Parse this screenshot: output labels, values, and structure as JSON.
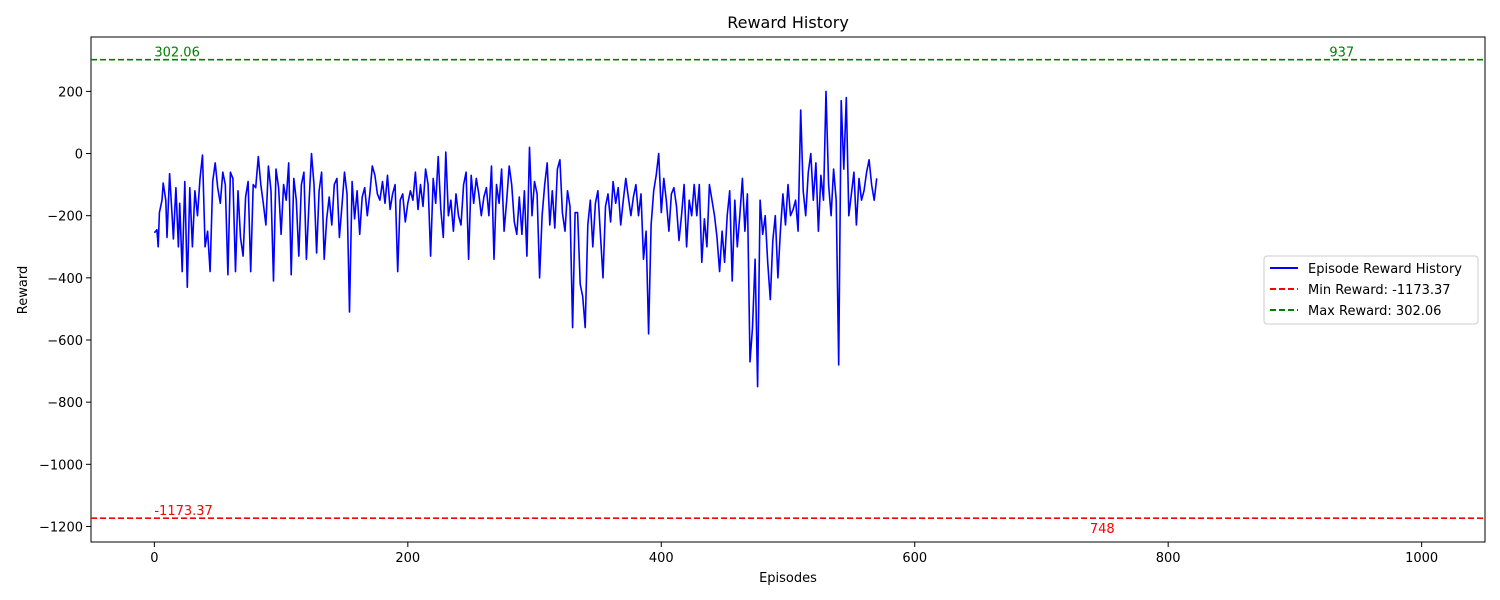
{
  "chart_data": {
    "type": "line",
    "title": "Reward History",
    "xlabel": "Episodes",
    "ylabel": "Reward",
    "xlim": [
      -50,
      1050
    ],
    "ylim": [
      -1250,
      375
    ],
    "xticks": [
      0,
      200,
      400,
      600,
      800,
      1000
    ],
    "xtick_labels": [
      "0",
      "200",
      "400",
      "600",
      "800",
      "1000"
    ],
    "yticks": [
      -1200,
      -1000,
      -800,
      -600,
      -400,
      -200,
      0,
      200
    ],
    "ytick_labels": [
      "−1200",
      "−1000",
      "−800",
      "−600",
      "−400",
      "−200",
      "0",
      "200"
    ],
    "grid": false,
    "legend_position": "center-right",
    "series": [
      {
        "name": "Episode Reward History",
        "color": "#0000ff",
        "style": "solid",
        "points": [
          [
            0,
            -255
          ],
          [
            2,
            -245
          ],
          [
            3,
            -300
          ],
          [
            4,
            -190
          ],
          [
            6,
            -150
          ],
          [
            7,
            -95
          ],
          [
            9,
            -150
          ],
          [
            10,
            -270
          ],
          [
            12,
            -65
          ],
          [
            14,
            -200
          ],
          [
            15,
            -275
          ],
          [
            17,
            -110
          ],
          [
            19,
            -300
          ],
          [
            20,
            -160
          ],
          [
            22,
            -380
          ],
          [
            24,
            -90
          ],
          [
            26,
            -430
          ],
          [
            28,
            -110
          ],
          [
            30,
            -300
          ],
          [
            32,
            -120
          ],
          [
            34,
            -200
          ],
          [
            36,
            -80
          ],
          [
            38,
            -5
          ],
          [
            40,
            -300
          ],
          [
            42,
            -250
          ],
          [
            44,
            -380
          ],
          [
            46,
            -90
          ],
          [
            48,
            -30
          ],
          [
            50,
            -110
          ],
          [
            52,
            -160
          ],
          [
            54,
            -60
          ],
          [
            56,
            -100
          ],
          [
            58,
            -390
          ],
          [
            60,
            -60
          ],
          [
            62,
            -80
          ],
          [
            64,
            -380
          ],
          [
            66,
            -120
          ],
          [
            68,
            -270
          ],
          [
            70,
            -330
          ],
          [
            72,
            -140
          ],
          [
            74,
            -90
          ],
          [
            76,
            -380
          ],
          [
            78,
            -100
          ],
          [
            80,
            -110
          ],
          [
            82,
            -10
          ],
          [
            84,
            -100
          ],
          [
            86,
            -160
          ],
          [
            88,
            -230
          ],
          [
            90,
            -40
          ],
          [
            92,
            -120
          ],
          [
            94,
            -410
          ],
          [
            96,
            -50
          ],
          [
            98,
            -110
          ],
          [
            100,
            -260
          ],
          [
            102,
            -100
          ],
          [
            104,
            -150
          ],
          [
            106,
            -30
          ],
          [
            108,
            -390
          ],
          [
            110,
            -80
          ],
          [
            112,
            -150
          ],
          [
            114,
            -330
          ],
          [
            116,
            -100
          ],
          [
            118,
            -60
          ],
          [
            120,
            -340
          ],
          [
            122,
            -160
          ],
          [
            124,
            0
          ],
          [
            126,
            -100
          ],
          [
            128,
            -320
          ],
          [
            130,
            -120
          ],
          [
            132,
            -60
          ],
          [
            134,
            -340
          ],
          [
            136,
            -210
          ],
          [
            138,
            -140
          ],
          [
            140,
            -230
          ],
          [
            142,
            -100
          ],
          [
            144,
            -80
          ],
          [
            146,
            -270
          ],
          [
            148,
            -170
          ],
          [
            150,
            -60
          ],
          [
            152,
            -130
          ],
          [
            154,
            -510
          ],
          [
            156,
            -90
          ],
          [
            158,
            -210
          ],
          [
            160,
            -120
          ],
          [
            162,
            -260
          ],
          [
            164,
            -140
          ],
          [
            166,
            -110
          ],
          [
            168,
            -200
          ],
          [
            170,
            -130
          ],
          [
            172,
            -40
          ],
          [
            174,
            -70
          ],
          [
            176,
            -130
          ],
          [
            178,
            -150
          ],
          [
            180,
            -90
          ],
          [
            182,
            -160
          ],
          [
            184,
            -70
          ],
          [
            186,
            -180
          ],
          [
            188,
            -130
          ],
          [
            190,
            -100
          ],
          [
            192,
            -380
          ],
          [
            194,
            -150
          ],
          [
            196,
            -130
          ],
          [
            198,
            -220
          ],
          [
            200,
            -160
          ],
          [
            202,
            -120
          ],
          [
            204,
            -150
          ],
          [
            206,
            -60
          ],
          [
            208,
            -180
          ],
          [
            210,
            -100
          ],
          [
            212,
            -170
          ],
          [
            214,
            -50
          ],
          [
            216,
            -100
          ],
          [
            218,
            -330
          ],
          [
            220,
            -80
          ],
          [
            222,
            -160
          ],
          [
            224,
            -10
          ],
          [
            226,
            -180
          ],
          [
            228,
            -270
          ],
          [
            230,
            5
          ],
          [
            232,
            -200
          ],
          [
            234,
            -150
          ],
          [
            236,
            -250
          ],
          [
            238,
            -130
          ],
          [
            240,
            -200
          ],
          [
            242,
            -230
          ],
          [
            244,
            -100
          ],
          [
            246,
            -60
          ],
          [
            248,
            -340
          ],
          [
            250,
            -70
          ],
          [
            252,
            -160
          ],
          [
            254,
            -80
          ],
          [
            256,
            -130
          ],
          [
            258,
            -200
          ],
          [
            260,
            -140
          ],
          [
            262,
            -110
          ],
          [
            264,
            -200
          ],
          [
            266,
            -40
          ],
          [
            268,
            -340
          ],
          [
            270,
            -100
          ],
          [
            272,
            -160
          ],
          [
            274,
            -50
          ],
          [
            276,
            -250
          ],
          [
            278,
            -150
          ],
          [
            280,
            -40
          ],
          [
            282,
            -100
          ],
          [
            284,
            -220
          ],
          [
            286,
            -260
          ],
          [
            288,
            -140
          ],
          [
            290,
            -260
          ],
          [
            292,
            -120
          ],
          [
            294,
            -330
          ],
          [
            296,
            20
          ],
          [
            298,
            -200
          ],
          [
            300,
            -90
          ],
          [
            302,
            -130
          ],
          [
            304,
            -400
          ],
          [
            306,
            -200
          ],
          [
            308,
            -100
          ],
          [
            310,
            -30
          ],
          [
            312,
            -230
          ],
          [
            314,
            -120
          ],
          [
            316,
            -240
          ],
          [
            318,
            -50
          ],
          [
            320,
            -20
          ],
          [
            322,
            -190
          ],
          [
            324,
            -250
          ],
          [
            326,
            -120
          ],
          [
            328,
            -170
          ],
          [
            330,
            -560
          ],
          [
            332,
            -190
          ],
          [
            334,
            -190
          ],
          [
            336,
            -420
          ],
          [
            338,
            -460
          ],
          [
            340,
            -560
          ],
          [
            342,
            -230
          ],
          [
            344,
            -150
          ],
          [
            346,
            -300
          ],
          [
            348,
            -160
          ],
          [
            350,
            -120
          ],
          [
            352,
            -260
          ],
          [
            354,
            -400
          ],
          [
            356,
            -170
          ],
          [
            358,
            -130
          ],
          [
            360,
            -220
          ],
          [
            362,
            -90
          ],
          [
            364,
            -160
          ],
          [
            366,
            -110
          ],
          [
            368,
            -230
          ],
          [
            370,
            -150
          ],
          [
            372,
            -80
          ],
          [
            374,
            -140
          ],
          [
            376,
            -200
          ],
          [
            378,
            -140
          ],
          [
            380,
            -100
          ],
          [
            382,
            -200
          ],
          [
            384,
            -130
          ],
          [
            386,
            -340
          ],
          [
            388,
            -250
          ],
          [
            390,
            -580
          ],
          [
            392,
            -230
          ],
          [
            394,
            -120
          ],
          [
            396,
            -70
          ],
          [
            398,
            0
          ],
          [
            400,
            -190
          ],
          [
            402,
            -80
          ],
          [
            404,
            -150
          ],
          [
            406,
            -250
          ],
          [
            408,
            -130
          ],
          [
            410,
            -110
          ],
          [
            412,
            -170
          ],
          [
            414,
            -280
          ],
          [
            416,
            -200
          ],
          [
            418,
            -100
          ],
          [
            420,
            -300
          ],
          [
            422,
            -150
          ],
          [
            424,
            -200
          ],
          [
            426,
            -100
          ],
          [
            428,
            -200
          ],
          [
            430,
            -100
          ],
          [
            432,
            -350
          ],
          [
            434,
            -210
          ],
          [
            436,
            -300
          ],
          [
            438,
            -100
          ],
          [
            440,
            -150
          ],
          [
            442,
            -200
          ],
          [
            444,
            -270
          ],
          [
            446,
            -380
          ],
          [
            448,
            -250
          ],
          [
            450,
            -350
          ],
          [
            452,
            -200
          ],
          [
            454,
            -120
          ],
          [
            456,
            -410
          ],
          [
            458,
            -150
          ],
          [
            460,
            -300
          ],
          [
            462,
            -200
          ],
          [
            464,
            -80
          ],
          [
            466,
            -250
          ],
          [
            468,
            -130
          ],
          [
            470,
            -670
          ],
          [
            472,
            -560
          ],
          [
            474,
            -340
          ],
          [
            476,
            -750
          ],
          [
            478,
            -150
          ],
          [
            480,
            -260
          ],
          [
            482,
            -200
          ],
          [
            484,
            -350
          ],
          [
            486,
            -470
          ],
          [
            488,
            -280
          ],
          [
            490,
            -200
          ],
          [
            492,
            -400
          ],
          [
            494,
            -250
          ],
          [
            496,
            -130
          ],
          [
            498,
            -230
          ],
          [
            500,
            -100
          ],
          [
            502,
            -200
          ],
          [
            504,
            -180
          ],
          [
            506,
            -150
          ],
          [
            508,
            -250
          ],
          [
            510,
            140
          ],
          [
            512,
            -120
          ],
          [
            514,
            -200
          ],
          [
            516,
            -60
          ],
          [
            518,
            0
          ],
          [
            520,
            -150
          ],
          [
            522,
            -30
          ],
          [
            524,
            -250
          ],
          [
            526,
            -70
          ],
          [
            528,
            -150
          ],
          [
            530,
            200
          ],
          [
            532,
            -100
          ],
          [
            534,
            -200
          ],
          [
            536,
            -50
          ],
          [
            538,
            -150
          ],
          [
            540,
            -680
          ],
          [
            542,
            170
          ],
          [
            544,
            -50
          ],
          [
            546,
            180
          ],
          [
            548,
            -200
          ],
          [
            550,
            -130
          ],
          [
            552,
            -60
          ],
          [
            554,
            -230
          ],
          [
            556,
            -80
          ],
          [
            558,
            -150
          ],
          [
            560,
            -120
          ],
          [
            562,
            -60
          ],
          [
            564,
            -20
          ],
          [
            566,
            -100
          ],
          [
            568,
            -150
          ],
          [
            570,
            -80
          ]
        ]
      },
      {
        "name": "Min Reward: -1173.37",
        "color": "#ff0000",
        "style": "dashed",
        "constant": -1173.37
      },
      {
        "name": "Max Reward: 302.06",
        "color": "#008000",
        "style": "dashed",
        "constant": 302.06
      }
    ],
    "annotations": [
      {
        "text": "302.06",
        "x": 0,
        "y": 302.06,
        "color": "#008000",
        "anchor": "start"
      },
      {
        "text": "937",
        "x": 937,
        "y": 302.06,
        "color": "#008000",
        "anchor": "middle"
      },
      {
        "text": "-1173.37",
        "x": 0,
        "y": -1173.37,
        "color": "#ff0000",
        "anchor": "start"
      },
      {
        "text": "748",
        "x": 748,
        "y": -1173.37,
        "color": "#ff0000",
        "anchor": "middle",
        "below": true
      }
    ]
  }
}
